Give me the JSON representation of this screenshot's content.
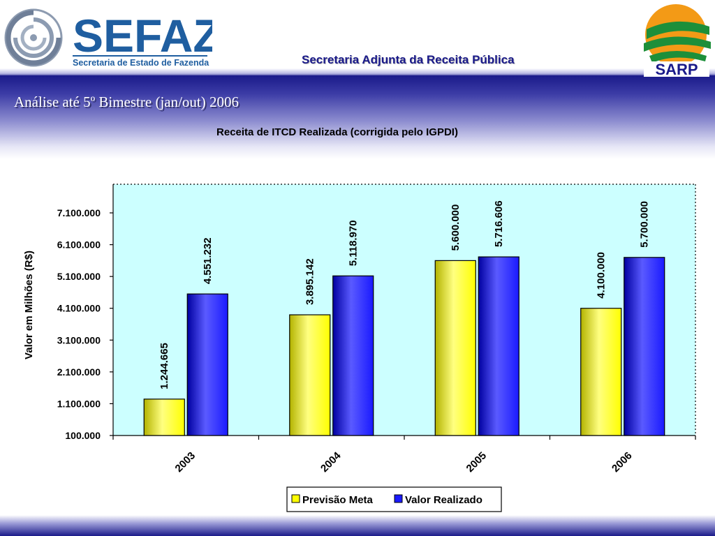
{
  "header": {
    "org_name": "SEFAZ",
    "org_subtitle": "Secretaria de Estado de Fazenda",
    "subtitle": "Secretaria Adjunta da Receita Pública",
    "partner_logo_text": "SARP"
  },
  "section_title": "Análise até 5º Bimestre (jan/out) 2006",
  "colors": {
    "series_meta": "#ffff00",
    "series_realizado": "#1a1aff",
    "plot_bg": "#ccffff",
    "brand_blue": "#1a1a8a"
  },
  "chart_data": {
    "type": "bar",
    "title": "Receita de ITCD Realizada (corrigida pelo IGPDI)",
    "ylabel": "Valor em Milhões (R$)",
    "xlabel": "",
    "categories": [
      "2003",
      "2004",
      "2005",
      "2006"
    ],
    "series": [
      {
        "name": "Previsão Meta",
        "values": [
          1244665,
          3895142,
          5600000,
          4100000
        ],
        "labels": [
          "1.244.665",
          "3.895.142",
          "5.600.000",
          "4.100.000"
        ]
      },
      {
        "name": "Valor Realizado",
        "values": [
          4551232,
          5118970,
          5716606,
          5700000
        ],
        "labels": [
          "4.551.232",
          "5.118.970",
          "5.716.606",
          "5.700.000"
        ]
      }
    ],
    "ylim": [
      100000,
      8000000
    ],
    "yticks": [
      100000,
      1100000,
      2100000,
      3100000,
      4100000,
      5100000,
      6100000,
      7100000
    ],
    "ytick_labels": [
      "100.000",
      "1.100.000",
      "2.100.000",
      "3.100.000",
      "4.100.000",
      "5.100.000",
      "6.100.000",
      "7.100.000"
    ],
    "grid": false,
    "legend": "bottom"
  }
}
